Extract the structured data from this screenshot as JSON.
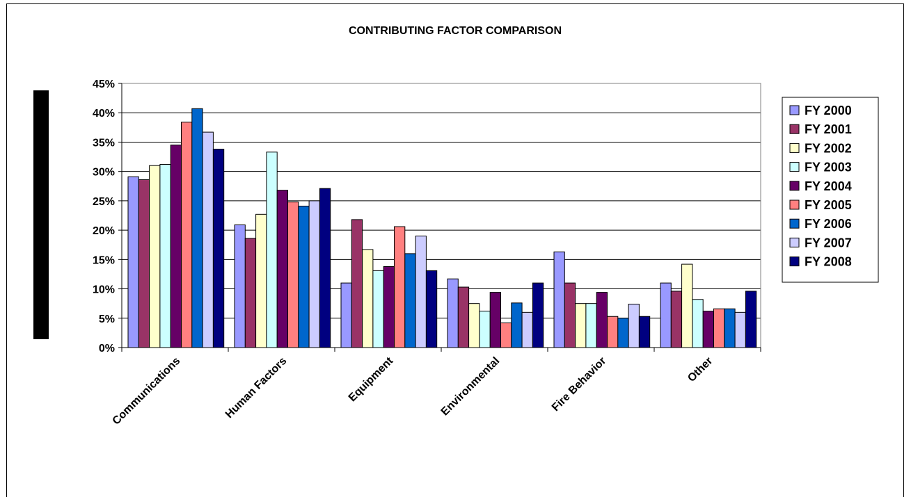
{
  "chart_data": {
    "type": "bar",
    "title": "CONTRIBUTING FACTOR COMPARISON",
    "xlabel": "",
    "ylabel": "",
    "ylim": [
      0,
      45
    ],
    "y_ticks": [
      "0%",
      "5%",
      "10%",
      "15%",
      "20%",
      "25%",
      "30%",
      "35%",
      "40%",
      "45%"
    ],
    "grid": true,
    "legend_position": "right",
    "categories": [
      "Communications",
      "Human Factors",
      "Equipment",
      "Environmental",
      "Fire Behavior",
      "Other"
    ],
    "series": [
      {
        "name": "FY 2000",
        "color": "#9999ff",
        "values": [
          29.1,
          20.9,
          11.0,
          11.7,
          16.3,
          11.0
        ]
      },
      {
        "name": "FY 2001",
        "color": "#993366",
        "values": [
          28.6,
          18.6,
          21.8,
          10.3,
          11.0,
          9.6
        ]
      },
      {
        "name": "FY 2002",
        "color": "#ffffcc",
        "values": [
          31.0,
          22.7,
          16.7,
          7.5,
          7.5,
          14.2
        ]
      },
      {
        "name": "FY 2003",
        "color": "#ccffff",
        "values": [
          31.2,
          33.3,
          13.1,
          6.2,
          7.5,
          8.2
        ]
      },
      {
        "name": "FY 2004",
        "color": "#660066",
        "values": [
          34.5,
          26.8,
          13.8,
          9.4,
          9.4,
          6.2
        ]
      },
      {
        "name": "FY 2005",
        "color": "#ff8080",
        "values": [
          38.4,
          24.8,
          20.6,
          4.2,
          5.3,
          6.6
        ]
      },
      {
        "name": "FY 2006",
        "color": "#0066cc",
        "values": [
          40.7,
          24.1,
          16.0,
          7.6,
          5.0,
          6.6
        ]
      },
      {
        "name": "FY 2007",
        "color": "#ccccff",
        "values": [
          36.7,
          25.0,
          19.0,
          6.0,
          7.4,
          6.0
        ]
      },
      {
        "name": "FY 2008",
        "color": "#000080",
        "values": [
          33.8,
          27.1,
          13.1,
          11.0,
          5.3,
          9.6
        ]
      }
    ]
  }
}
